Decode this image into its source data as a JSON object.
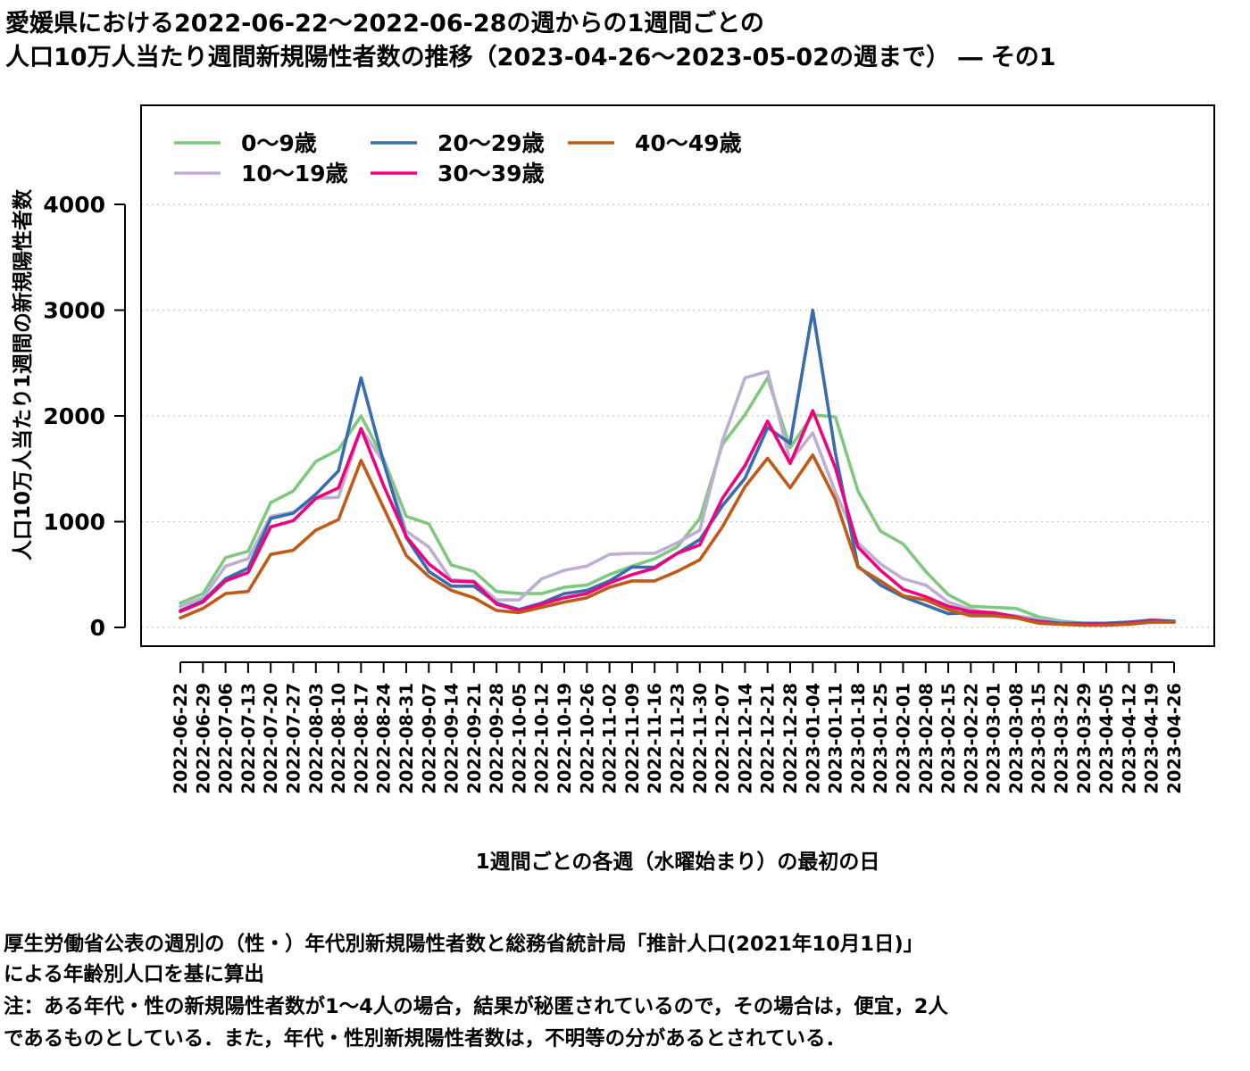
{
  "title_line1": "愛媛県における2022-06-22〜2022-06-28の週からの1週間ごとの",
  "title_line2": "人口10万人当たり週間新規陽性者数の推移（2023-04-26〜2023-05-02の週まで） ― その1",
  "footnotes": [
    "厚生労働省公表の週別の（性・）年代別新規陽性者数と総務省統計局「推計人口(2021年10月1日)」",
    "による年齢別人口を基に算出",
    "注：ある年代・性の新規陽性者数が1〜4人の場合，結果が秘匿されているので，その場合は，便宜，2人",
    "であるものとしている．また，年代・性別新規陽性者数は，不明等の分があるとされている．"
  ],
  "chart_data": {
    "type": "line",
    "xlabel": "1週間ごとの各週（水曜始まり）の最初の日",
    "ylabel": "人口10万人当たり1週間の新規陽性者数",
    "ylim": [
      0,
      4900
    ],
    "yticks": [
      0,
      1000,
      2000,
      3000,
      4000
    ],
    "grid": "horizontal-dotted",
    "legend_position": "top-left",
    "categories": [
      "2022-06-22",
      "2022-06-29",
      "2022-07-06",
      "2022-07-13",
      "2022-07-20",
      "2022-07-27",
      "2022-08-03",
      "2022-08-10",
      "2022-08-17",
      "2022-08-24",
      "2022-08-31",
      "2022-09-07",
      "2022-09-14",
      "2022-09-21",
      "2022-09-28",
      "2022-10-05",
      "2022-10-12",
      "2022-10-19",
      "2022-10-26",
      "2022-11-02",
      "2022-11-09",
      "2022-11-16",
      "2022-11-23",
      "2022-11-30",
      "2022-12-07",
      "2022-12-14",
      "2022-12-21",
      "2022-12-28",
      "2023-01-04",
      "2023-01-11",
      "2023-01-18",
      "2023-01-25",
      "2023-02-01",
      "2023-02-08",
      "2023-02-15",
      "2023-02-22",
      "2023-03-01",
      "2023-03-08",
      "2023-03-15",
      "2023-03-22",
      "2023-03-29",
      "2023-04-05",
      "2023-04-12",
      "2023-04-19",
      "2023-04-26"
    ],
    "series": [
      {
        "name": "0〜9歳",
        "color": "#7fc97f",
        "values": [
          230,
          320,
          660,
          720,
          1180,
          1290,
          1570,
          1680,
          2000,
          1590,
          1050,
          980,
          590,
          530,
          340,
          320,
          320,
          380,
          400,
          500,
          580,
          650,
          760,
          1030,
          1730,
          2010,
          2360,
          1700,
          2010,
          1990,
          1290,
          910,
          790,
          530,
          310,
          200,
          190,
          180,
          100,
          60,
          40,
          40,
          50,
          60,
          60
        ]
      },
      {
        "name": "10〜19歳",
        "color": "#beaed4",
        "values": [
          200,
          280,
          580,
          650,
          1050,
          1090,
          1220,
          1230,
          1880,
          1560,
          910,
          760,
          450,
          440,
          260,
          260,
          460,
          540,
          580,
          690,
          700,
          700,
          800,
          920,
          1760,
          2360,
          2420,
          1570,
          1840,
          1280,
          800,
          600,
          460,
          400,
          240,
          170,
          130,
          110,
          80,
          50,
          40,
          40,
          50,
          60,
          60
        ]
      },
      {
        "name": "20〜29歳",
        "color": "#386cb0",
        "values": [
          160,
          250,
          460,
          560,
          1030,
          1080,
          1260,
          1480,
          2360,
          1560,
          850,
          530,
          390,
          390,
          230,
          170,
          230,
          320,
          350,
          440,
          570,
          570,
          700,
          830,
          1150,
          1410,
          1890,
          1740,
          3000,
          1650,
          580,
          400,
          290,
          210,
          130,
          140,
          120,
          90,
          60,
          40,
          40,
          40,
          50,
          70,
          60
        ]
      },
      {
        "name": "30〜39歳",
        "color": "#f0027f",
        "values": [
          150,
          240,
          440,
          520,
          950,
          1010,
          1220,
          1320,
          1880,
          1340,
          860,
          600,
          440,
          430,
          220,
          160,
          220,
          280,
          320,
          420,
          500,
          560,
          700,
          780,
          1220,
          1530,
          1950,
          1550,
          2050,
          1510,
          760,
          540,
          360,
          290,
          200,
          150,
          140,
          100,
          50,
          30,
          30,
          30,
          40,
          60,
          50
        ]
      },
      {
        "name": "40〜49歳",
        "color": "#bf5b17",
        "values": [
          90,
          180,
          320,
          340,
          690,
          730,
          920,
          1020,
          1580,
          1130,
          680,
          480,
          350,
          280,
          160,
          140,
          190,
          240,
          280,
          380,
          440,
          440,
          530,
          640,
          950,
          1330,
          1600,
          1320,
          1630,
          1210,
          570,
          440,
          300,
          260,
          170,
          110,
          110,
          90,
          40,
          30,
          20,
          20,
          30,
          50,
          50
        ]
      }
    ]
  }
}
